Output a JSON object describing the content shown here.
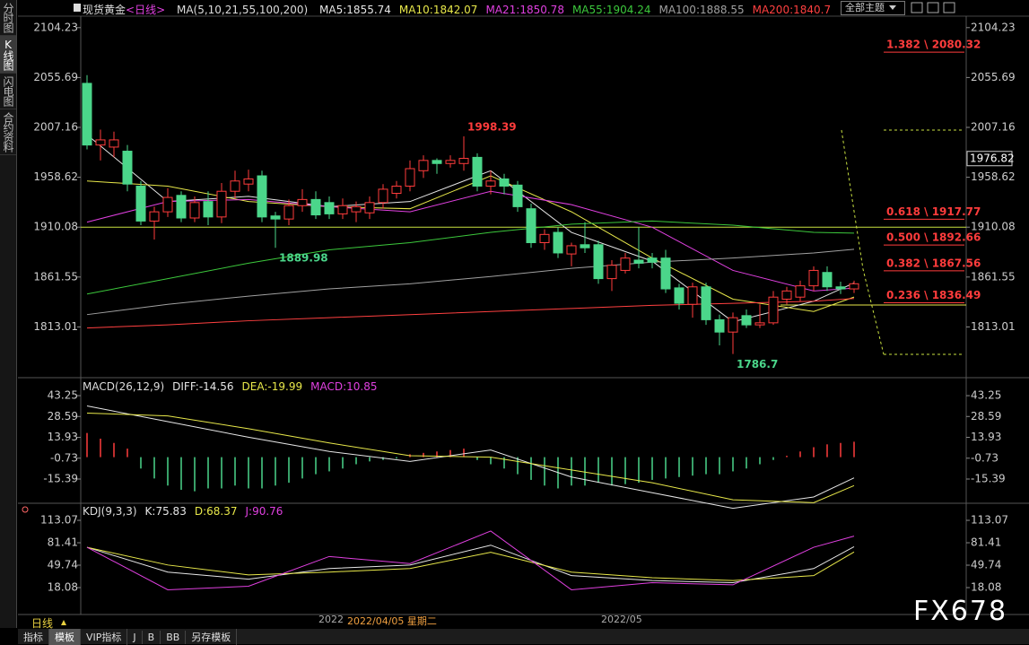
{
  "sidebar": [
    "分时图",
    "K线图",
    "闪电图",
    "合约资料"
  ],
  "toolbar": {
    "instrument": "现货黄金",
    "period": "<日线>",
    "theme_button": "全部主题"
  },
  "bottom": {
    "period": "日线",
    "dates": [
      "2022",
      "2022/04/05 星期二",
      "2022/05"
    ],
    "tabs": [
      "指标",
      "模板",
      "VIP指标",
      "J",
      "B",
      "BB",
      "另存模板"
    ]
  },
  "watermark": "FX678",
  "chart_data": [
    {
      "type": "candlestick",
      "ma_label": "MA(5,10,21,55,100,200)",
      "ylim": [
        1764.5,
        2111.9
      ],
      "yticks": [
        2104.23,
        2055.69,
        2007.16,
        1958.62,
        1910.08,
        1861.55,
        1813.01
      ],
      "cursor_price": 1976.82,
      "ohlc": [
        [
          2050,
          2058,
          1985.8,
          1990
        ],
        [
          1990,
          2005,
          1975,
          1995
        ],
        [
          1988,
          2003,
          1978,
          1995
        ],
        [
          1984,
          1990,
          1945,
          1952
        ],
        [
          1950,
          1955,
          1912,
          1916
        ],
        [
          1916,
          1930,
          1898,
          1925
        ],
        [
          1925,
          1948,
          1920,
          1939
        ],
        [
          1941,
          1945,
          1915,
          1919
        ],
        [
          1919,
          1940,
          1915,
          1934
        ],
        [
          1935,
          1945,
          1912,
          1920
        ],
        [
          1920,
          1953,
          1914,
          1945
        ],
        [
          1945,
          1965,
          1938,
          1955
        ],
        [
          1952,
          1966,
          1945,
          1957
        ],
        [
          1960,
          1965,
          1915,
          1920
        ],
        [
          1921,
          1925,
          1889.98,
          1918
        ],
        [
          1918,
          1937,
          1912,
          1931
        ],
        [
          1931,
          1947,
          1925,
          1937
        ],
        [
          1937,
          1945,
          1918,
          1922
        ],
        [
          1934,
          1940,
          1918,
          1923
        ],
        [
          1923,
          1938,
          1918,
          1931
        ],
        [
          1925,
          1935,
          1915,
          1930
        ],
        [
          1924,
          1940,
          1918,
          1934
        ],
        [
          1934,
          1952,
          1928,
          1947
        ],
        [
          1943,
          1955,
          1938,
          1950
        ],
        [
          1950,
          1975,
          1945,
          1967
        ],
        [
          1965,
          1980,
          1958,
          1975
        ],
        [
          1975,
          1977,
          1962,
          1972
        ],
        [
          1972,
          1980,
          1968,
          1975
        ],
        [
          1972,
          1998.39,
          1965,
          1977
        ],
        [
          1978,
          1982,
          1945,
          1950
        ],
        [
          1950,
          1965,
          1942,
          1955
        ],
        [
          1957,
          1962,
          1942,
          1950
        ],
        [
          1951,
          1955,
          1925,
          1930
        ],
        [
          1928,
          1933,
          1890,
          1895
        ],
        [
          1895,
          1908,
          1888,
          1903
        ],
        [
          1905,
          1910,
          1880,
          1885
        ],
        [
          1884,
          1895,
          1872,
          1892
        ],
        [
          1893,
          1915,
          1885,
          1890
        ],
        [
          1893,
          1897,
          1855,
          1860
        ],
        [
          1860,
          1878,
          1848,
          1873
        ],
        [
          1868,
          1885,
          1865,
          1880
        ],
        [
          1878,
          1910,
          1870,
          1875
        ],
        [
          1880,
          1885,
          1870,
          1876
        ],
        [
          1880,
          1888,
          1846,
          1850
        ],
        [
          1851,
          1855,
          1830,
          1836
        ],
        [
          1835,
          1856,
          1822,
          1852
        ],
        [
          1852,
          1856,
          1815,
          1820
        ],
        [
          1820,
          1825,
          1795,
          1808
        ],
        [
          1808,
          1827,
          1786.7,
          1822
        ],
        [
          1824,
          1830,
          1812,
          1815
        ],
        [
          1815,
          1835,
          1812,
          1817
        ],
        [
          1817,
          1848,
          1815,
          1842
        ],
        [
          1840,
          1852,
          1835,
          1848
        ],
        [
          1842,
          1858,
          1838,
          1853
        ],
        [
          1853,
          1872,
          1848,
          1868
        ],
        [
          1866,
          1872,
          1848,
          1852
        ],
        [
          1852,
          1857,
          1845,
          1850
        ],
        [
          1850,
          1858,
          1846,
          1855
        ]
      ],
      "series": [
        {
          "name": "MA5",
          "color": "#e6e6e6",
          "x": [
            0,
            6,
            12,
            18,
            24,
            30,
            36,
            42,
            48,
            54,
            57
          ],
          "values": [
            2000,
            1935,
            1940,
            1930,
            1935,
            1965,
            1905,
            1877,
            1818,
            1838,
            1855.74
          ]
        },
        {
          "name": "MA10",
          "color": "#e8e84a",
          "x": [
            0,
            6,
            12,
            18,
            24,
            30,
            36,
            42,
            48,
            54,
            57
          ],
          "values": [
            1955,
            1950,
            1935,
            1930,
            1928,
            1960,
            1925,
            1880,
            1840,
            1828,
            1842.07
          ]
        },
        {
          "name": "MA21",
          "color": "#e040e0",
          "x": [
            0,
            6,
            12,
            18,
            24,
            30,
            36,
            42,
            48,
            54,
            57
          ],
          "values": [
            1915,
            1935,
            1937,
            1930,
            1925,
            1945,
            1932,
            1910,
            1868,
            1848,
            1850.78
          ]
        },
        {
          "name": "MA55",
          "color": "#3cc83c",
          "x": [
            0,
            6,
            12,
            18,
            24,
            30,
            36,
            42,
            48,
            54,
            57
          ],
          "values": [
            1845,
            1860,
            1875,
            1888,
            1895,
            1905,
            1913,
            1916,
            1912,
            1905,
            1904.24
          ]
        },
        {
          "name": "MA100",
          "color": "#a0a0a0",
          "x": [
            0,
            6,
            12,
            18,
            24,
            30,
            36,
            42,
            48,
            54,
            57
          ],
          "values": [
            1825,
            1835,
            1843,
            1850,
            1855,
            1862,
            1870,
            1876,
            1880,
            1885,
            1888.55
          ]
        },
        {
          "name": "MA200",
          "color": "#ff4040",
          "x": [
            0,
            6,
            12,
            18,
            24,
            30,
            36,
            42,
            48,
            54,
            57
          ],
          "values": [
            1812,
            1815,
            1819,
            1822,
            1825,
            1828,
            1831,
            1834,
            1836,
            1838,
            1840.7
          ]
        }
      ],
      "fib_levels": [
        {
          "value": 2080.32,
          "label": "1.382 \\ 2080.32"
        },
        {
          "value": 1917.77,
          "label": "0.618 \\ 1917.77"
        },
        {
          "value": 1892.66,
          "label": "0.500 \\ 1892.66"
        },
        {
          "value": 1867.56,
          "label": "0.382 \\ 1867.56"
        },
        {
          "value": 1836.49,
          "label": "0.236 \\ 1836.49"
        }
      ]
    },
    {
      "type": "bar",
      "title": "MACD(26,12,9)",
      "name": "MACD",
      "color": "#e040e0",
      "ylim": [
        -31.8,
        54
      ],
      "yticks": [
        43.25,
        28.59,
        13.93,
        -0.73,
        -15.39
      ],
      "values": [
        17,
        13,
        10,
        6,
        -8,
        -15,
        -20,
        -23,
        -24,
        -22,
        -22,
        -20,
        -22,
        -22,
        -20,
        -18,
        -15,
        -12,
        -10,
        -8,
        -5,
        -3,
        -2,
        -1,
        2,
        3,
        4,
        5,
        6,
        -2,
        -5,
        -8,
        -12,
        -16,
        -20,
        -22,
        -20,
        -20,
        -18,
        -20,
        -19,
        -18,
        -16,
        -15,
        -14,
        -13,
        -12,
        -12,
        -10,
        -8,
        -5,
        -2,
        1,
        4,
        7,
        9,
        10,
        10.85
      ],
      "series": [
        {
          "name": "DIFF",
          "color": "#e6e6e6",
          "x": [
            0,
            6,
            12,
            18,
            24,
            30,
            36,
            42,
            48,
            54,
            57
          ],
          "values": [
            36,
            25,
            14,
            4,
            -3,
            5,
            -14,
            -25,
            -36,
            -28,
            -14.56
          ]
        },
        {
          "name": "DEA",
          "color": "#e8e84a",
          "x": [
            0,
            6,
            12,
            18,
            24,
            30,
            36,
            42,
            48,
            54,
            57
          ],
          "values": [
            31,
            29,
            20,
            10,
            1,
            0,
            -9,
            -18,
            -30,
            -32,
            -19.99
          ]
        }
      ]
    },
    {
      "type": "line",
      "title": "KDJ(9,3,3)",
      "ylim": [
        -19.9,
        135.9
      ],
      "yticks": [
        113.07,
        81.41,
        49.74,
        18.08
      ],
      "series": [
        {
          "name": "K",
          "color": "#e6e6e6",
          "x": [
            0,
            6,
            12,
            18,
            24,
            30,
            36,
            42,
            48,
            54,
            57
          ],
          "values": [
            75,
            40,
            30,
            45,
            50,
            78,
            35,
            28,
            25,
            45,
            75.83
          ]
        },
        {
          "name": "D",
          "color": "#e8e84a",
          "x": [
            0,
            6,
            12,
            18,
            24,
            30,
            36,
            42,
            48,
            54,
            57
          ],
          "values": [
            75,
            50,
            36,
            40,
            45,
            68,
            40,
            32,
            28,
            35,
            68.37
          ]
        },
        {
          "name": "J",
          "color": "#e040e0",
          "x": [
            0,
            6,
            12,
            18,
            24,
            30,
            36,
            42,
            48,
            54,
            57
          ],
          "values": [
            75,
            15,
            20,
            62,
            52,
            98,
            15,
            25,
            22,
            75,
            90.76
          ]
        }
      ]
    }
  ]
}
